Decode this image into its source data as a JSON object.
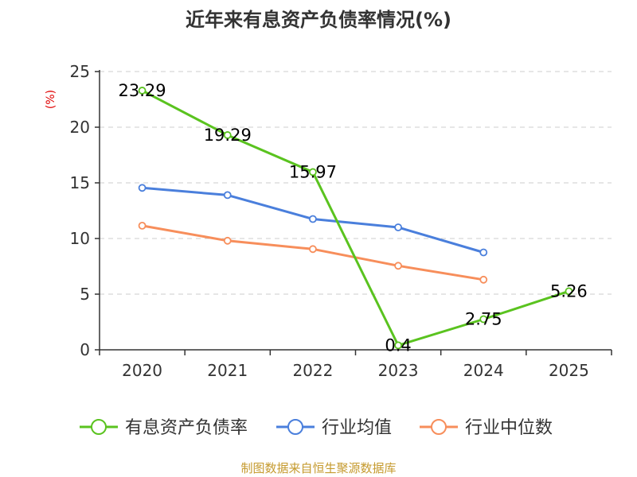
{
  "chart_data": {
    "type": "line",
    "title": "近年来有息资产负债率情况(%)",
    "ylabel": "(%)",
    "xlabel": "",
    "categories": [
      "2020",
      "2021",
      "2022",
      "2023",
      "2024",
      "2025"
    ],
    "ylim": [
      0,
      25
    ],
    "yticks": [
      0,
      5,
      10,
      15,
      20,
      25
    ],
    "grid": true,
    "legend_position": "bottom",
    "series": [
      {
        "name": "有息资产负债率",
        "color": "#5ac31f",
        "values": [
          23.29,
          19.29,
          15.97,
          0.4,
          2.75,
          5.26
        ],
        "labels": [
          "23.29",
          "19.29",
          "15.97",
          "0.4",
          "2.75",
          "5.26"
        ]
      },
      {
        "name": "行业均值",
        "color": "#4a7fdc",
        "values": [
          14.55,
          13.9,
          11.75,
          11.0,
          8.75,
          null
        ],
        "labels": []
      },
      {
        "name": "行业中位数",
        "color": "#f78e5b",
        "values": [
          11.15,
          9.8,
          9.05,
          7.55,
          6.3,
          null
        ],
        "labels": []
      }
    ]
  },
  "source": "制图数据来自恒生聚源数据库"
}
